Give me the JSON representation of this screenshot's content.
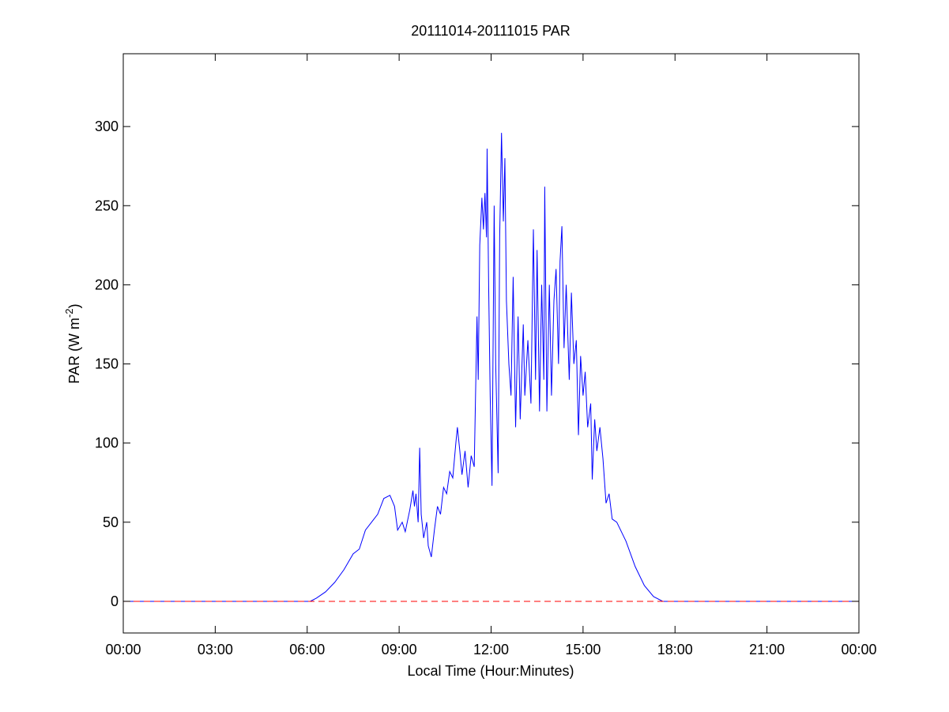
{
  "chart_data": {
    "type": "line",
    "title": "20111014-20111015 PAR",
    "xlabel": "Local Time (Hour:Minutes)",
    "ylabel": [
      "PAR (W m",
      "-2",
      ")"
    ],
    "xlim": [
      0,
      24
    ],
    "xticks": [
      {
        "value": 0,
        "label": "00:00"
      },
      {
        "value": 3,
        "label": "03:00"
      },
      {
        "value": 6,
        "label": "06:00"
      },
      {
        "value": 9,
        "label": "09:00"
      },
      {
        "value": 12,
        "label": "12:00"
      },
      {
        "value": 15,
        "label": "15:00"
      },
      {
        "value": 18,
        "label": "18:00"
      },
      {
        "value": 21,
        "label": "21:00"
      },
      {
        "value": 24,
        "label": "00:00"
      }
    ],
    "ylim": [
      -20,
      346
    ],
    "yticks": [
      0,
      50,
      100,
      150,
      200,
      250,
      300
    ],
    "series": [
      {
        "color": "#0000ff",
        "dash": "solid",
        "x": [
          0,
          6.1,
          6.3,
          6.6,
          6.9,
          7.2,
          7.5,
          7.7,
          7.9,
          8.1,
          8.3,
          8.5,
          8.7,
          8.85,
          8.95,
          9.1,
          9.2,
          9.35,
          9.45,
          9.5,
          9.55,
          9.62,
          9.67,
          9.72,
          9.8,
          9.9,
          9.95,
          10.05,
          10.15,
          10.25,
          10.35,
          10.45,
          10.55,
          10.65,
          10.75,
          10.85,
          10.9,
          10.98,
          11.05,
          11.15,
          11.25,
          11.35,
          11.45,
          11.54,
          11.58,
          11.63,
          11.7,
          11.75,
          11.8,
          11.85,
          11.87,
          11.92,
          11.97,
          12.03,
          12.1,
          12.15,
          12.23,
          12.28,
          12.34,
          12.4,
          12.45,
          12.5,
          12.58,
          12.65,
          12.72,
          12.8,
          12.88,
          12.95,
          13.05,
          13.1,
          13.2,
          13.3,
          13.38,
          13.45,
          13.5,
          13.58,
          13.65,
          13.72,
          13.75,
          13.82,
          13.9,
          13.97,
          14.05,
          14.12,
          14.2,
          14.25,
          14.31,
          14.38,
          14.45,
          14.55,
          14.62,
          14.7,
          14.78,
          14.85,
          14.92,
          15.0,
          15.07,
          15.15,
          15.25,
          15.3,
          15.38,
          15.45,
          15.55,
          15.65,
          15.75,
          15.85,
          15.95,
          16.1,
          16.4,
          16.7,
          17.0,
          17.3,
          17.6,
          24
        ],
        "values": [
          0,
          0,
          2,
          6,
          12,
          20,
          30,
          33,
          45,
          50,
          55,
          65,
          67,
          60,
          45,
          50,
          44,
          58,
          70,
          60,
          68,
          50,
          97,
          55,
          40,
          50,
          35,
          28,
          45,
          60,
          55,
          72,
          68,
          82,
          78,
          100,
          110,
          95,
          80,
          95,
          72,
          92,
          85,
          180,
          140,
          225,
          255,
          235,
          258,
          230,
          286,
          200,
          130,
          73,
          250,
          150,
          81,
          230,
          296,
          240,
          280,
          190,
          150,
          130,
          205,
          110,
          180,
          115,
          175,
          130,
          165,
          125,
          235,
          140,
          222,
          120,
          200,
          140,
          262,
          120,
          200,
          130,
          190,
          210,
          150,
          215,
          237,
          160,
          200,
          140,
          195,
          150,
          165,
          105,
          155,
          130,
          145,
          110,
          125,
          77,
          115,
          95,
          110,
          90,
          62,
          68,
          52,
          50,
          38,
          22,
          10,
          3,
          0,
          0
        ]
      },
      {
        "color": "#ff0000",
        "dash": "dashed",
        "x": [
          0,
          24
        ],
        "values": [
          0,
          0
        ]
      }
    ]
  }
}
